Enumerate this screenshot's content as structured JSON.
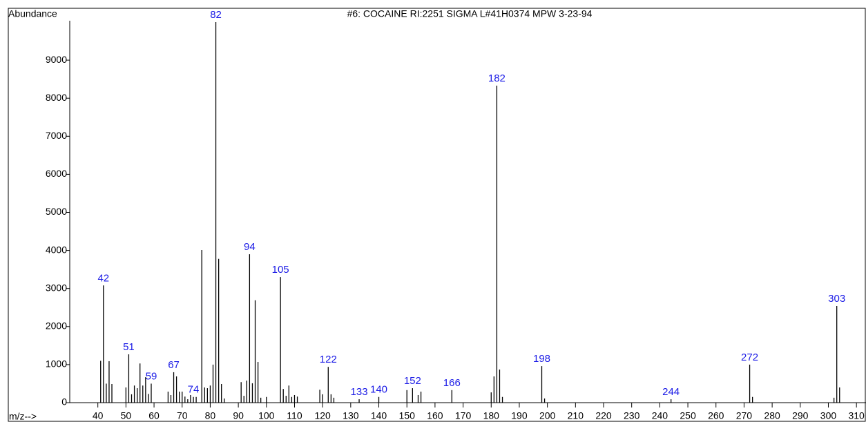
{
  "chart_data": {
    "type": "bar",
    "title": "#6: COCAINE RI:2251 SIGMA L#41H0374 MPW 3-23-94",
    "y_label": "Abundance",
    "x_label": "m/z-->",
    "color": "#000000",
    "label_color": "#1a1ae6",
    "x": [
      41,
      42,
      43,
      44,
      45,
      50,
      51,
      52,
      53,
      54,
      55,
      56,
      57,
      58,
      59,
      65,
      66,
      67,
      68,
      69,
      70,
      71,
      72,
      73,
      74,
      75,
      77,
      78,
      79,
      80,
      81,
      82,
      83,
      84,
      85,
      91,
      92,
      93,
      94,
      95,
      96,
      97,
      98,
      100,
      105,
      106,
      107,
      108,
      109,
      110,
      111,
      119,
      120,
      122,
      123,
      124,
      133,
      140,
      150,
      152,
      154,
      155,
      166,
      180,
      181,
      182,
      183,
      184,
      198,
      199,
      244,
      272,
      273,
      302,
      303,
      304
    ],
    "values": [
      1100,
      3080,
      500,
      1090,
      490,
      400,
      1270,
      220,
      450,
      380,
      1030,
      450,
      670,
      230,
      500,
      290,
      200,
      800,
      690,
      290,
      290,
      160,
      90,
      200,
      150,
      150,
      4010,
      400,
      380,
      450,
      1000,
      10000,
      3780,
      490,
      110,
      540,
      180,
      580,
      3900,
      510,
      2690,
      1070,
      130,
      150,
      3300,
      360,
      180,
      450,
      150,
      200,
      160,
      340,
      220,
      940,
      220,
      130,
      90,
      150,
      330,
      380,
      200,
      290,
      330,
      270,
      690,
      8330,
      870,
      150,
      960,
      110,
      90,
      1000,
      150,
      130,
      2540,
      400
    ],
    "annotations": [
      42,
      51,
      59,
      67,
      74,
      82,
      94,
      105,
      122,
      133,
      140,
      152,
      166,
      182,
      198,
      244,
      272,
      303
    ],
    "xlim": [
      30,
      313.4
    ],
    "ylim": [
      0,
      10000
    ],
    "xticks": [
      40,
      50,
      60,
      70,
      80,
      90,
      100,
      110,
      120,
      130,
      140,
      150,
      160,
      170,
      180,
      190,
      200,
      210,
      220,
      230,
      240,
      250,
      260,
      270,
      280,
      290,
      300,
      310
    ],
    "yticks": [
      0,
      1000,
      2000,
      3000,
      4000,
      5000,
      6000,
      7000,
      8000,
      9000
    ]
  }
}
